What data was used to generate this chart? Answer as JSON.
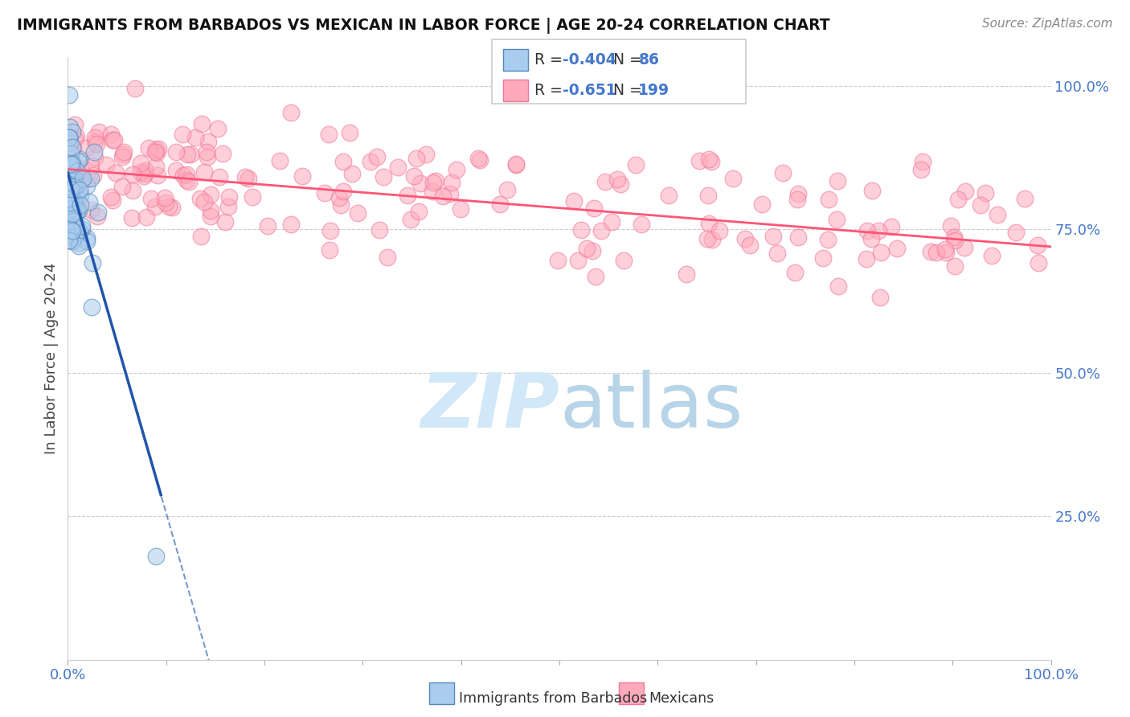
{
  "title": "IMMIGRANTS FROM BARBADOS VS MEXICAN IN LABOR FORCE | AGE 20-24 CORRELATION CHART",
  "source": "Source: ZipAtlas.com",
  "ylabel": "In Labor Force | Age 20-24",
  "right_yticklabels": [
    "25.0%",
    "50.0%",
    "75.0%",
    "100.0%"
  ],
  "right_ytick_vals": [
    0.25,
    0.5,
    0.75,
    1.0
  ],
  "legend_blue_R": "-0.404",
  "legend_blue_N": "86",
  "legend_pink_R": "-0.651",
  "legend_pink_N": "199",
  "legend_label_blue": "Immigrants from Barbados",
  "legend_label_pink": "Mexicans",
  "blue_fill_color": "#AACCEE",
  "blue_edge_color": "#5588BB",
  "pink_fill_color": "#FFAABB",
  "pink_edge_color": "#EE7799",
  "blue_line_color": "#2255AA",
  "pink_line_color": "#FF5577",
  "watermark_color": "#D0E8F8",
  "grid_color": "#CCCCCC",
  "text_color_blue": "#4477CC",
  "text_color_dark": "#333333",
  "title_color": "#111111",
  "source_color": "#888888",
  "N_blue": 86,
  "N_pink": 199,
  "blue_R": -0.404,
  "pink_R": -0.651,
  "xlim": [
    0.0,
    1.0
  ],
  "ylim": [
    0.0,
    1.05
  ]
}
